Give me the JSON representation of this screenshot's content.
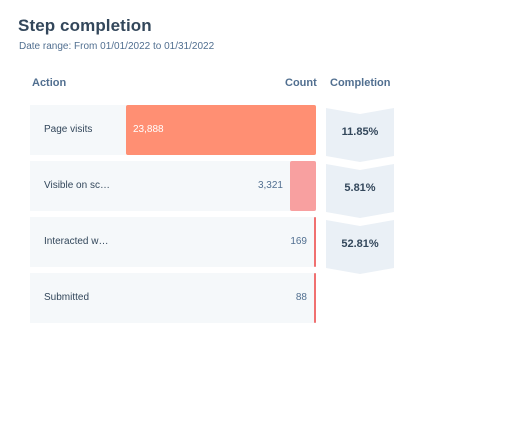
{
  "header": {
    "title": "Step completion",
    "subtitle": "Date range: From 01/01/2022 to 01/31/2022"
  },
  "columns": {
    "action": "Action",
    "count": "Count",
    "completion": "Completion"
  },
  "colors": {
    "bar_primary": "#ff8f73",
    "row_background": "#f5f8fa",
    "chevron_fill": "#eaf0f6"
  },
  "chart_data": {
    "type": "bar",
    "orientation": "horizontal",
    "categories": [
      "Page visits",
      "Visible on sc…",
      "Interacted w…",
      "Submitted"
    ],
    "values": [
      23888,
      3321,
      169,
      88
    ],
    "value_labels": [
      "23,888",
      "3,321",
      "169",
      "88"
    ],
    "completion_rates": [
      "11.85%",
      "5.81%",
      "52.81%"
    ],
    "max": 23888
  }
}
